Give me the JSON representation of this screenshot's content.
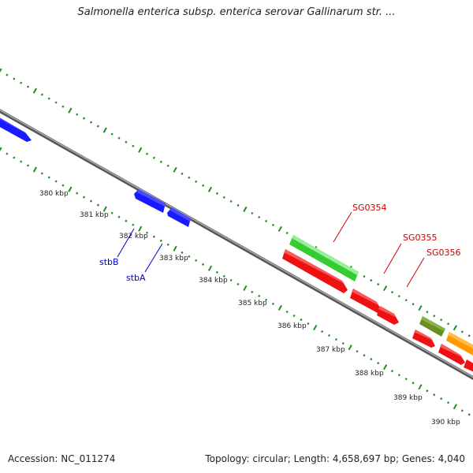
{
  "title": "Salmonella enterica subsp. enterica serovar Gallinarum str. ...",
  "footer": {
    "accession": "Accession: NC_011274",
    "summary": "Topology: circular; Length: 4,658,697 bp; Genes: 4,040"
  },
  "ticks": [
    "380 kbp",
    "381 kbp",
    "382 kbp",
    "383 kbp",
    "384 kbp",
    "385 kbp",
    "386 kbp",
    "387 kbp",
    "388 kbp",
    "389 kbp",
    "390 kbp"
  ],
  "genes": {
    "stbB": "stbB",
    "stbA": "stbA",
    "SG0354": "SG0354",
    "SG0355": "SG0355",
    "SG0356": "SG0356"
  },
  "colors": {
    "backbone": "#8a8a8a",
    "tick": "#1e8c1e",
    "blue": "#1a1aff",
    "red": "#ee1111",
    "green": "#44dd44",
    "olive": "#6b8e23",
    "orange": "#ff9900",
    "label_blue": "#0000cc",
    "label_red": "#cc0000"
  }
}
